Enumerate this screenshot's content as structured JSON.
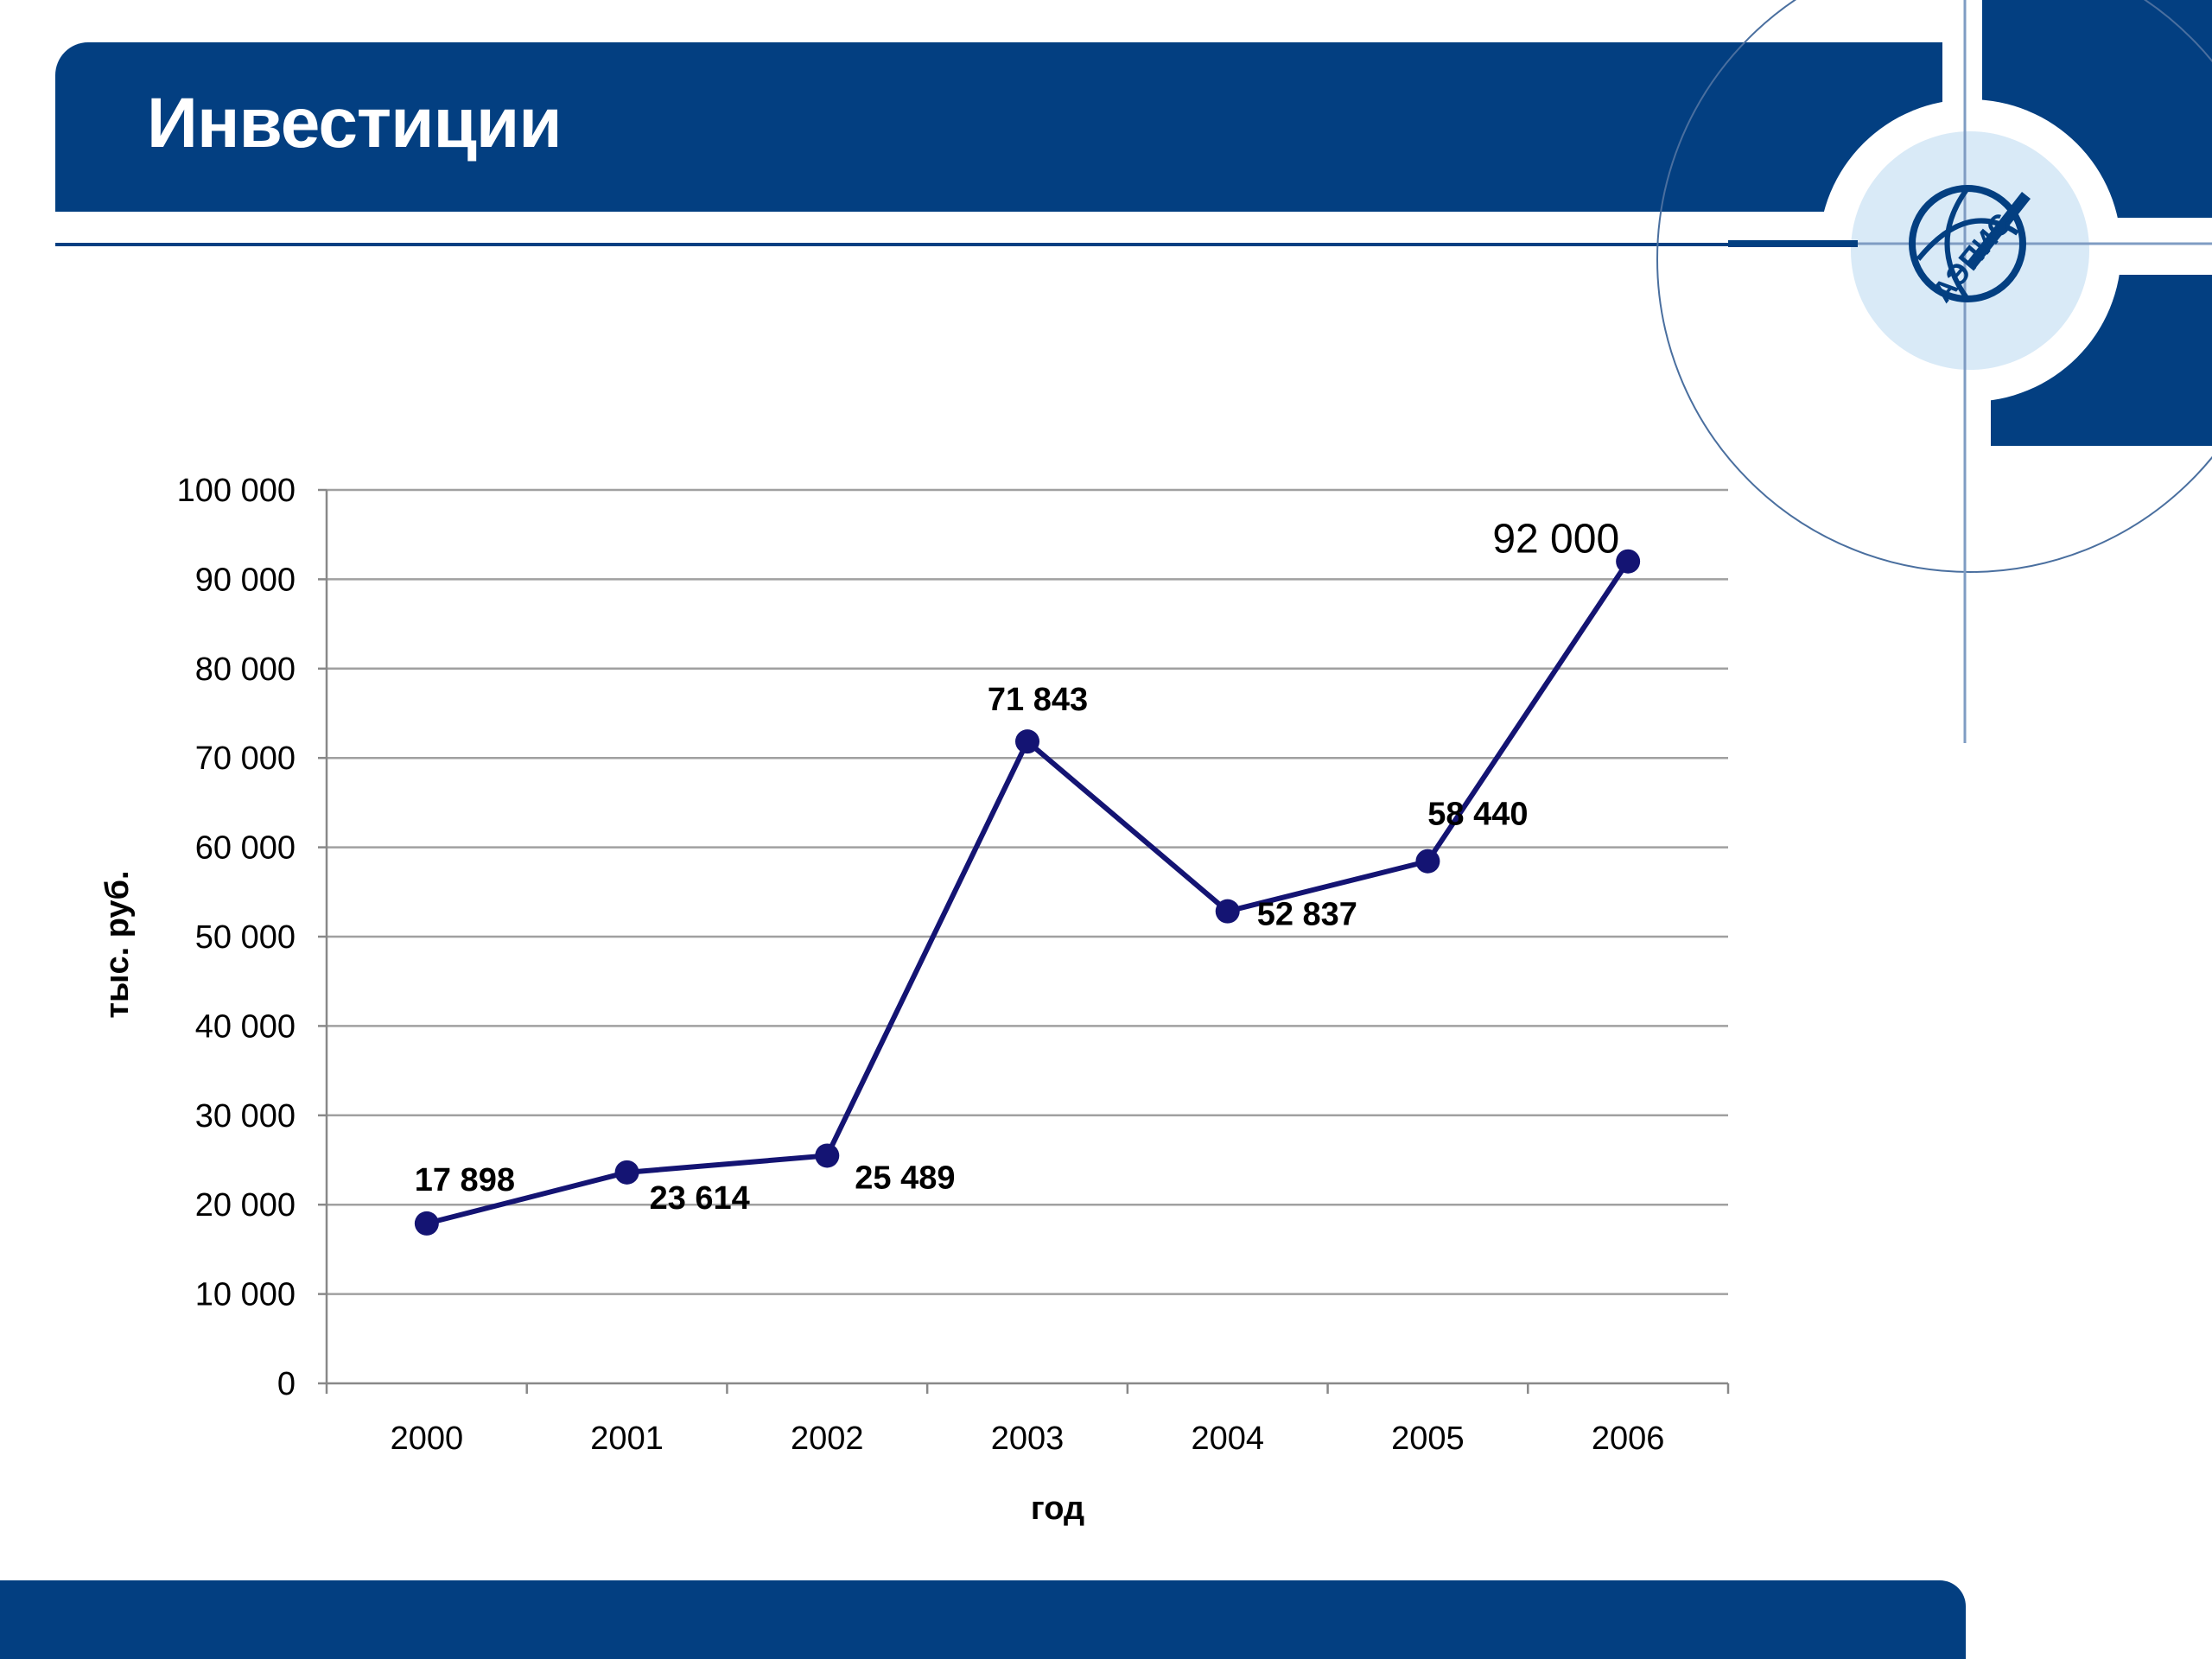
{
  "slide": {
    "title": "Инвестиции",
    "logo_text": "АЭПИС"
  },
  "colors": {
    "brand_blue": "#033f81",
    "series_line": "#141473",
    "gridline": "#a0a0a0",
    "logo_disc": "#d9eaf7"
  },
  "chart_data": {
    "type": "line",
    "title": "",
    "xlabel": "год",
    "ylabel": "тыс. руб.",
    "x": [
      "2000",
      "2001",
      "2002",
      "2003",
      "2004",
      "2005",
      "2006"
    ],
    "series": [
      {
        "values": [
          17898,
          23614,
          25489,
          71843,
          52837,
          58440,
          92000
        ],
        "labels": [
          "17 898",
          "23 614",
          "25 489",
          "71 843",
          "52 837",
          "58 440",
          "92 000"
        ]
      }
    ],
    "ylim": [
      0,
      100000
    ],
    "yticks": [
      "0",
      "10 000",
      "20 000",
      "30 000",
      "40 000",
      "50 000",
      "60 000",
      "70 000",
      "80 000",
      "90 000",
      "100 000"
    ],
    "grid": true,
    "legend": "none"
  }
}
